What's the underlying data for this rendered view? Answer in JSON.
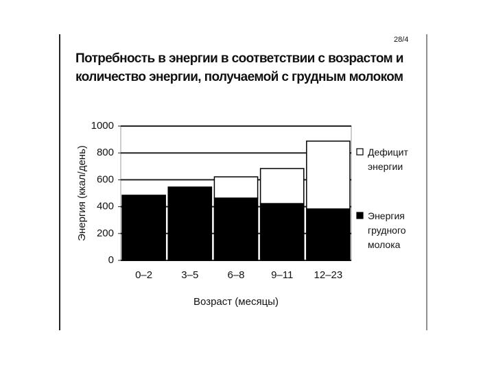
{
  "page_number": "28/4",
  "chart_data": {
    "type": "stacked-bar",
    "title": "Потребность в энергии в соответствии с возрастом и количество энергии, получаемой с грудным молоком",
    "x_label": "Возраст (месяцы)",
    "y_label": "Энергия (ккал/день)",
    "categories": [
      "0–2",
      "3–5",
      "6–8",
      "9–11",
      "12–23"
    ],
    "series": [
      {
        "name": "Энергия грудного молока",
        "color": "#000000",
        "values": [
          485,
          546,
          464,
          423,
          383
        ]
      },
      {
        "name": "Дефицит энергии",
        "color": "#ffffff",
        "values": [
          0,
          0,
          158,
          261,
          505
        ]
      }
    ],
    "ylim": [
      0,
      1000
    ],
    "yticks": [
      0,
      200,
      400,
      600,
      800,
      1000
    ],
    "grid": true,
    "legend": "right"
  }
}
